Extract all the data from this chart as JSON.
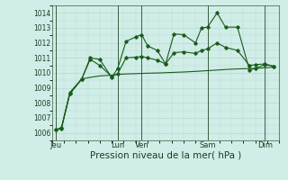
{
  "background_color": "#d0ede8",
  "grid_color": "#b8d8ce",
  "line_color": "#1a5c1a",
  "xlabel": "Pression niveau de la mer( hPa )",
  "xlabel_fontsize": 7.5,
  "ylim": [
    1005.5,
    1014.5
  ],
  "yticks": [
    1006,
    1007,
    1008,
    1009,
    1010,
    1011,
    1012,
    1013,
    1014
  ],
  "xlim": [
    0,
    19
  ],
  "day_labels": [
    "Jeu",
    "Lun",
    "Ven",
    "Sam",
    "Dim"
  ],
  "day_positions": [
    0.3,
    5.5,
    7.5,
    13.0,
    17.8
  ],
  "vline_positions": [
    0.3,
    5.5,
    7.5,
    13.0,
    17.8
  ],
  "line1_x": [
    0.3,
    0.8,
    1.5,
    2.5,
    3.2,
    4.0,
    5.0,
    5.5,
    6.2,
    7.0,
    7.5,
    8.0,
    8.8,
    9.5,
    10.2,
    11.0,
    12.0,
    12.5,
    13.0,
    13.8,
    14.5,
    15.5,
    16.5,
    17.0,
    17.8,
    18.5
  ],
  "line1_y": [
    1006.2,
    1006.3,
    1008.6,
    1009.6,
    1011.0,
    1010.9,
    1009.7,
    1010.3,
    1012.1,
    1012.4,
    1012.55,
    1011.8,
    1011.5,
    1010.6,
    1012.6,
    1012.55,
    1012.0,
    1013.0,
    1013.05,
    1014.0,
    1013.05,
    1013.05,
    1010.2,
    1010.3,
    1010.55,
    1010.45
  ],
  "line2_x": [
    0.3,
    0.8,
    1.5,
    2.5,
    3.2,
    4.0,
    5.0,
    5.5,
    6.2,
    7.0,
    8.0,
    9.0,
    10.0,
    11.0,
    12.0,
    13.0,
    14.0,
    15.0,
    16.0,
    17.0,
    18.0,
    18.5
  ],
  "line2_y": [
    1006.2,
    1006.3,
    1008.6,
    1009.6,
    1009.7,
    1009.8,
    1009.85,
    1009.9,
    1009.93,
    1009.95,
    1009.98,
    1010.0,
    1010.03,
    1010.06,
    1010.1,
    1010.15,
    1010.2,
    1010.25,
    1010.28,
    1010.3,
    1010.35,
    1010.38
  ],
  "line3_x": [
    0.3,
    0.8,
    1.5,
    2.5,
    3.2,
    4.0,
    5.0,
    5.5,
    6.2,
    7.0,
    7.5,
    8.0,
    8.8,
    9.5,
    10.2,
    11.0,
    12.0,
    12.5,
    13.0,
    13.8,
    14.5,
    15.5,
    16.5,
    17.0,
    17.8,
    18.5
  ],
  "line3_y": [
    1006.2,
    1006.35,
    1008.7,
    1009.6,
    1010.9,
    1010.5,
    1009.75,
    1009.95,
    1011.0,
    1011.05,
    1011.1,
    1011.0,
    1010.85,
    1010.6,
    1011.35,
    1011.4,
    1011.3,
    1011.5,
    1011.6,
    1012.0,
    1011.7,
    1011.5,
    1010.5,
    1010.55,
    1010.6,
    1010.45
  ]
}
